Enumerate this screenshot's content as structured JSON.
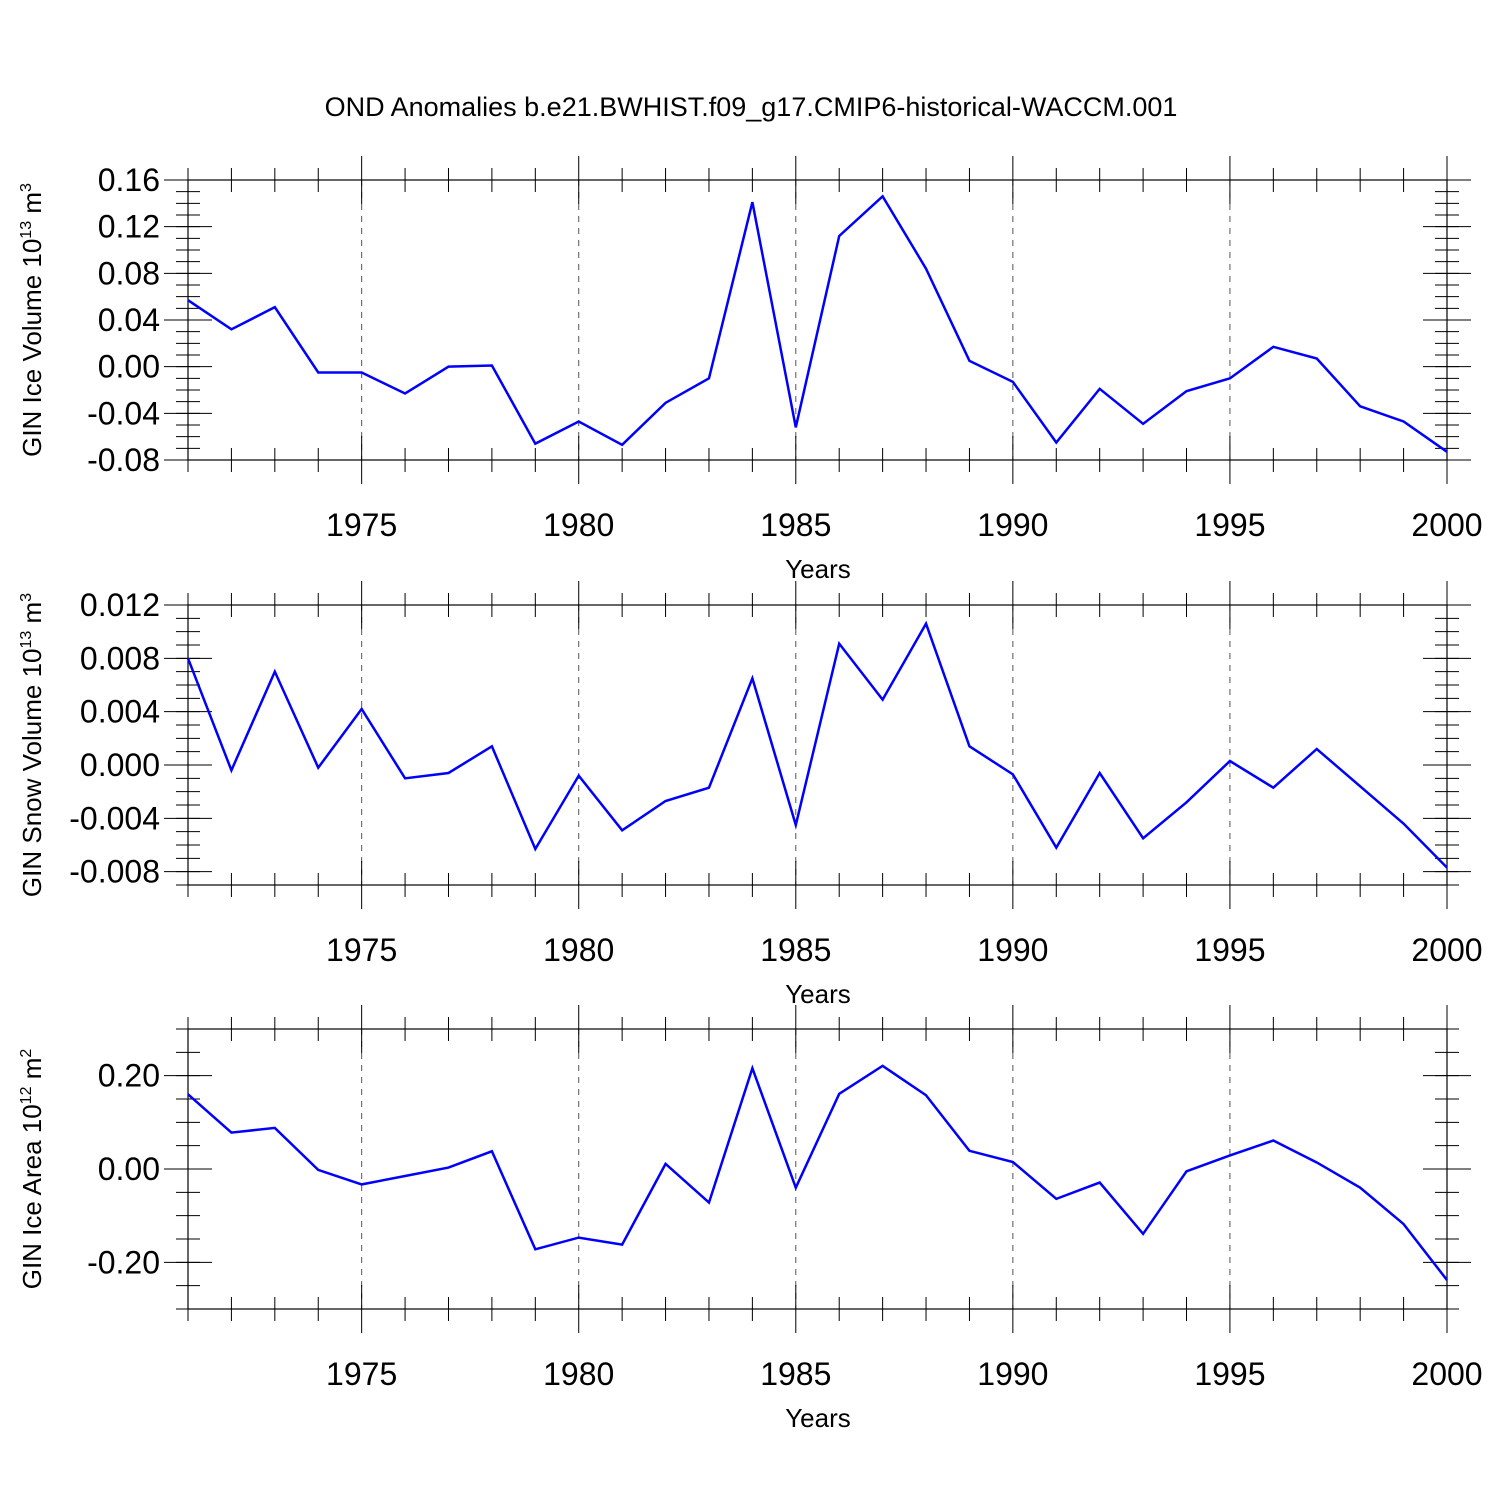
{
  "title": "OND Anomalies b.e21.BWHIST.f09_g17.CMIP6-historical-WACCM.001",
  "colors": {
    "line": "#0000ff",
    "axis": "#000000",
    "grid": "#555555"
  },
  "chart_data": [
    {
      "type": "line",
      "ylabel_text": "GIN Ice Volume 10",
      "ylabel_exp": "13",
      "ylabel_unit": "m",
      "ylabel_unit_exp": "3",
      "xlabel": "Years",
      "xlim": [
        1971,
        2000
      ],
      "ylim": [
        -0.08,
        0.16
      ],
      "major_yticks": [
        -0.08,
        -0.04,
        0.0,
        0.04,
        0.08,
        0.12,
        0.16
      ],
      "ytick_labels": [
        "-0.08",
        "-0.04",
        "0.00",
        "0.04",
        "0.08",
        "0.12",
        "0.16"
      ],
      "minor_ystep": 0.01,
      "xticks": [
        1975,
        1980,
        1985,
        1990,
        1995,
        2000
      ],
      "xtick_labels": [
        "1975",
        "1980",
        "1985",
        "1990",
        "1995",
        "2000"
      ],
      "x": [
        1971,
        1972,
        1973,
        1974,
        1975,
        1976,
        1977,
        1978,
        1979,
        1980,
        1981,
        1982,
        1983,
        1984,
        1985,
        1986,
        1987,
        1988,
        1989,
        1990,
        1991,
        1992,
        1993,
        1994,
        1995,
        1996,
        1997,
        1998,
        1999,
        2000
      ],
      "series": [
        {
          "name": "GIN Ice Volume",
          "values": [
            0.057,
            0.032,
            0.051,
            -0.005,
            -0.005,
            -0.023,
            0.0,
            0.001,
            -0.066,
            -0.047,
            -0.067,
            -0.031,
            -0.01,
            0.141,
            -0.052,
            0.112,
            0.146,
            0.084,
            0.005,
            -0.013,
            -0.065,
            -0.019,
            -0.049,
            -0.021,
            -0.01,
            0.017,
            0.007,
            -0.034,
            -0.047,
            -0.073
          ]
        }
      ]
    },
    {
      "type": "line",
      "ylabel_text": "GIN Snow Volume 10",
      "ylabel_exp": "13",
      "ylabel_unit": "m",
      "ylabel_unit_exp": "3",
      "xlabel": "Years",
      "xlim": [
        1971,
        2000
      ],
      "ylim": [
        -0.009,
        0.012
      ],
      "major_yticks": [
        -0.008,
        -0.004,
        0.0,
        0.004,
        0.008,
        0.012
      ],
      "ytick_labels": [
        "-0.008",
        "-0.004",
        "0.000",
        "0.004",
        "0.008",
        "0.012"
      ],
      "minor_ystep": 0.001,
      "xticks": [
        1975,
        1980,
        1985,
        1990,
        1995,
        2000
      ],
      "xtick_labels": [
        "1975",
        "1980",
        "1985",
        "1990",
        "1995",
        "2000"
      ],
      "x": [
        1971,
        1972,
        1973,
        1974,
        1975,
        1976,
        1977,
        1978,
        1979,
        1980,
        1981,
        1982,
        1983,
        1984,
        1985,
        1986,
        1987,
        1988,
        1989,
        1990,
        1991,
        1992,
        1993,
        1994,
        1995,
        1996,
        1997,
        1998,
        1999,
        2000
      ],
      "series": [
        {
          "name": "GIN Snow Volume",
          "values": [
            0.008,
            -0.0004,
            0.007,
            -0.0002,
            0.0042,
            -0.001,
            -0.0006,
            0.0014,
            -0.0063,
            -0.0008,
            -0.0049,
            -0.0027,
            -0.0017,
            0.0065,
            -0.0045,
            0.0091,
            0.0049,
            0.0106,
            0.0014,
            -0.0007,
            -0.0062,
            -0.0006,
            -0.0055,
            -0.0028,
            0.0003,
            -0.0017,
            0.0012,
            -0.0016,
            -0.0044,
            -0.0077
          ]
        }
      ]
    },
    {
      "type": "line",
      "ylabel_text": "GIN Ice Area 10",
      "ylabel_exp": "12",
      "ylabel_unit": "m",
      "ylabel_unit_exp": "2",
      "xlabel": "Years",
      "xlim": [
        1971,
        2000
      ],
      "ylim": [
        -0.3,
        0.3
      ],
      "major_yticks": [
        -0.2,
        0.0,
        0.2
      ],
      "ytick_labels": [
        "-0.20",
        "0.00",
        "0.20"
      ],
      "minor_ystep": 0.05,
      "xticks": [
        1975,
        1980,
        1985,
        1990,
        1995,
        2000
      ],
      "xtick_labels": [
        "1975",
        "1980",
        "1985",
        "1990",
        "1995",
        "2000"
      ],
      "x": [
        1971,
        1972,
        1973,
        1974,
        1975,
        1976,
        1977,
        1978,
        1979,
        1980,
        1981,
        1982,
        1983,
        1984,
        1985,
        1986,
        1987,
        1988,
        1989,
        1990,
        1991,
        1992,
        1993,
        1994,
        1995,
        1996,
        1997,
        1998,
        1999,
        2000
      ],
      "series": [
        {
          "name": "GIN Ice Area",
          "values": [
            0.16,
            0.078,
            0.088,
            -0.002,
            -0.033,
            -0.015,
            0.003,
            0.038,
            -0.172,
            -0.147,
            -0.162,
            0.011,
            -0.072,
            0.216,
            -0.04,
            0.161,
            0.221,
            0.158,
            0.039,
            0.015,
            -0.064,
            -0.029,
            -0.139,
            -0.005,
            0.029,
            0.061,
            0.014,
            -0.04,
            -0.118,
            -0.238
          ]
        }
      ]
    }
  ]
}
